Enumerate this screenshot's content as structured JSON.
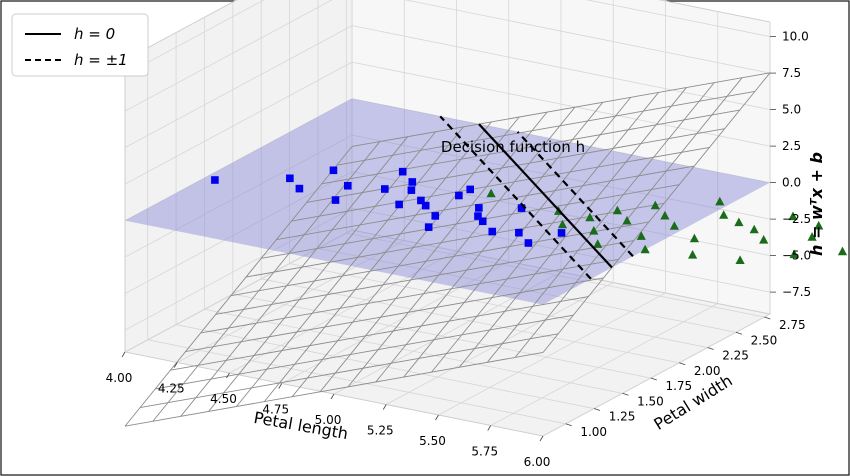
{
  "chart_data": {
    "type": "3d-surface-scatter",
    "xlabel": "Petal length",
    "ylabel": "Petal width",
    "zlabel": "h = wᵀx + b",
    "annotation": "Decision function h",
    "xlim": [
      4.0,
      6.0
    ],
    "ylim": [
      0.8,
      2.8
    ],
    "zlim": [
      -9,
      11
    ],
    "xticks": [
      "4.00",
      "4.25",
      "4.50",
      "4.75",
      "5.00",
      "5.25",
      "5.50",
      "5.75",
      "6.00"
    ],
    "yticks": [
      "1.00",
      "1.25",
      "1.50",
      "1.75",
      "2.00",
      "2.25",
      "2.50",
      "2.75"
    ],
    "zticks": [
      "−7.5",
      "−5.0",
      "−2.5",
      "0.0",
      "2.5",
      "5.0",
      "7.5",
      "10.0"
    ],
    "legend": {
      "location": "top-left",
      "entries": [
        {
          "label": "h = 0",
          "style": "solid"
        },
        {
          "label": "h = ±1",
          "style": "dashed"
        }
      ]
    },
    "surface": {
      "w": [
        5.4,
        5.4
      ],
      "b": -40.0,
      "grid": "wireframe"
    },
    "plane_z": 0,
    "series": [
      {
        "name": "class 0 (blue squares)",
        "marker": "square",
        "color": "#0000ee",
        "points": [
          [
            4.05,
            1.5
          ],
          [
            4.3,
            1.7
          ],
          [
            4.4,
            1.6
          ],
          [
            4.4,
            1.9
          ],
          [
            4.55,
            1.75
          ],
          [
            4.6,
            1.55
          ],
          [
            4.65,
            2.05
          ],
          [
            4.7,
            1.8
          ],
          [
            4.8,
            1.85
          ],
          [
            4.85,
            1.65
          ],
          [
            4.9,
            1.75
          ],
          [
            4.95,
            1.7
          ],
          [
            5.0,
            1.9
          ],
          [
            5.05,
            1.6
          ],
          [
            5.1,
            1.45
          ],
          [
            5.15,
            1.8
          ],
          [
            5.2,
            1.7
          ],
          [
            5.25,
            1.65
          ],
          [
            5.3,
            1.9
          ],
          [
            5.35,
            1.55
          ],
          [
            5.45,
            1.6
          ],
          [
            5.55,
            1.5
          ],
          [
            5.0,
            2.0
          ],
          [
            4.75,
            1.95
          ],
          [
            5.6,
            1.7
          ]
        ]
      },
      {
        "name": "class 1 (green triangles)",
        "marker": "triangle",
        "color": "#1a6b1a",
        "points": [
          [
            5.1,
            2.0
          ],
          [
            5.45,
            1.95
          ],
          [
            5.55,
            1.8
          ],
          [
            5.6,
            1.95
          ],
          [
            5.65,
            2.1
          ],
          [
            5.7,
            1.8
          ],
          [
            5.75,
            2.0
          ],
          [
            5.75,
            2.25
          ],
          [
            5.8,
            1.65
          ],
          [
            5.85,
            2.15
          ],
          [
            5.9,
            1.85
          ],
          [
            5.95,
            2.05
          ],
          [
            5.95,
            2.45
          ],
          [
            6.0,
            1.7
          ],
          [
            6.05,
            2.3
          ],
          [
            6.1,
            1.95
          ],
          [
            6.15,
            2.25
          ],
          [
            6.2,
            1.75
          ],
          [
            6.25,
            2.2
          ],
          [
            6.3,
            2.45
          ],
          [
            6.35,
            2.1
          ],
          [
            6.4,
            1.8
          ],
          [
            6.45,
            2.4
          ],
          [
            6.5,
            2.25
          ],
          [
            6.55,
            2.0
          ],
          [
            6.65,
            2.35
          ],
          [
            6.7,
            2.15
          ],
          [
            6.8,
            2.3
          ],
          [
            6.9,
            2.05
          ]
        ]
      }
    ]
  }
}
